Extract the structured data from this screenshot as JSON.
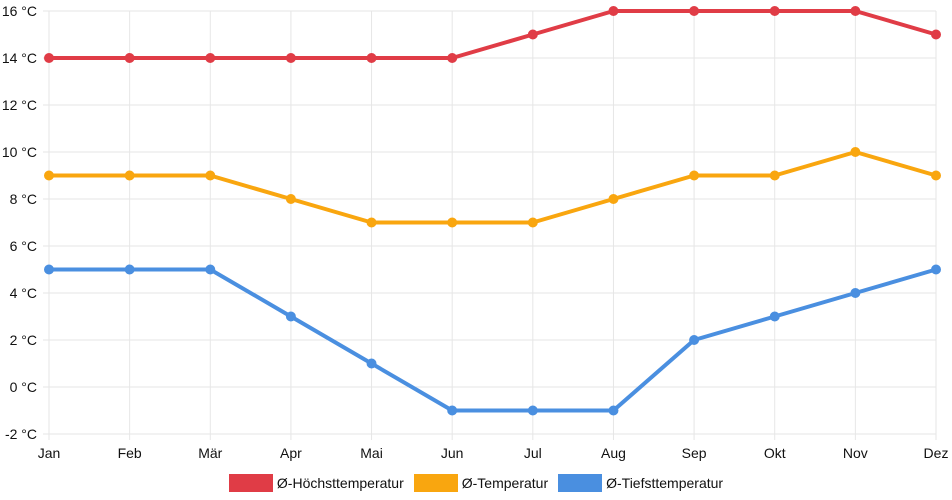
{
  "chart_data": {
    "type": "line",
    "categories": [
      "Jan",
      "Feb",
      "Mär",
      "Apr",
      "Mai",
      "Jun",
      "Jul",
      "Aug",
      "Sep",
      "Okt",
      "Nov",
      "Dez"
    ],
    "series": [
      {
        "name": "Ø-Höchsttemperatur",
        "color": "#e03c46",
        "values": [
          14,
          14,
          14,
          14,
          14,
          14,
          15,
          16,
          16,
          16,
          16,
          15
        ]
      },
      {
        "name": "Ø-Temperatur",
        "color": "#f9a60f",
        "values": [
          9,
          9,
          9,
          8,
          7,
          7,
          7,
          8,
          9,
          9,
          10,
          9
        ]
      },
      {
        "name": "Ø-Tiefsttemperatur",
        "color": "#4a8fe0",
        "values": [
          5,
          5,
          5,
          3,
          1,
          -1,
          -1,
          -1,
          2,
          3,
          4,
          5
        ]
      }
    ],
    "y_ticks": [
      "-2 °C",
      "0 °C",
      "2 °C",
      "4 °C",
      "6 °C",
      "8 °C",
      "10 °C",
      "12 °C",
      "14 °C",
      "16 °C"
    ],
    "ylim": [
      -2,
      16
    ],
    "y_step": 2,
    "grid": true,
    "legend_position": "bottom"
  }
}
